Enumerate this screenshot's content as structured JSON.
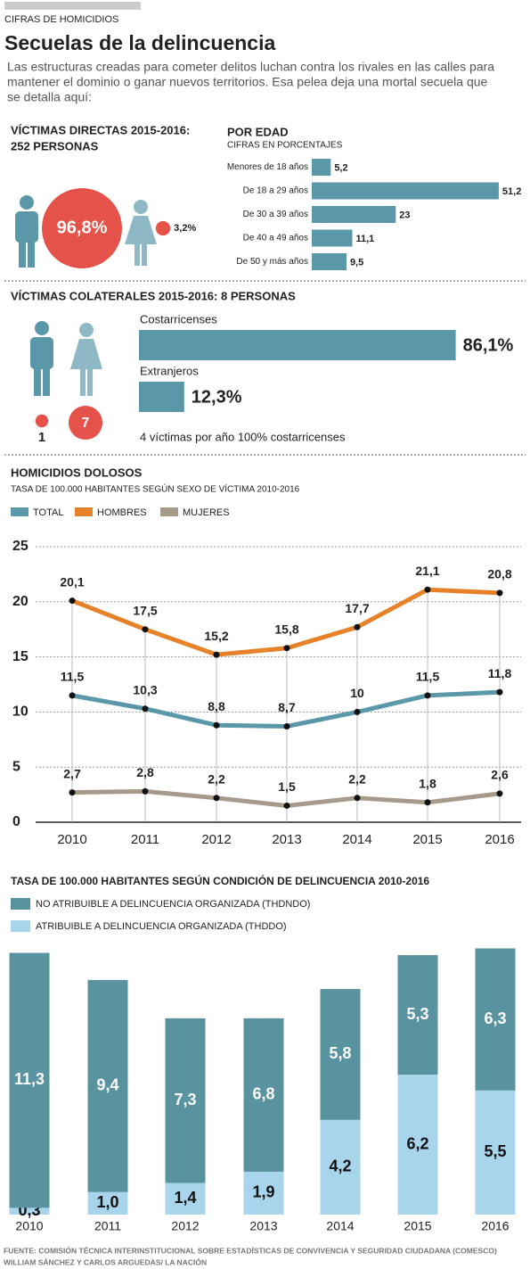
{
  "header": {
    "kicker": "CIFRAS DE HOMICIDIOS",
    "title": "Secuelas de la delincuencia",
    "lead": [
      "Las estructuras creadas para cometer delitos luchan contra los rivales en las calles para",
      "mantener el dominio o ganar nuevos territorios. Esa pelea deja una mortal secuela que",
      "se detalla aquí:"
    ]
  },
  "chart_data": [
    {
      "type": "circles",
      "title": [
        "VÍCTIMAS DIRECTAS 2015-2016:",
        "252 PERSONAS"
      ],
      "values": [
        96.8,
        3.2
      ],
      "value_labels": [
        "96,8%",
        "3,2%"
      ],
      "color": "#e4524a"
    },
    {
      "type": "bar",
      "orientation": "horizontal",
      "title": "POR EDAD",
      "subtitle": "CIFRAS EN PORCENTAJES",
      "categories": [
        "Menores de 18 años",
        "De 18 a 29 años",
        "De 30 a 39 años",
        "De 40 a 49 años",
        "De 50 y más años"
      ],
      "values": [
        5.2,
        51.2,
        23,
        11.1,
        9.5
      ],
      "value_labels": [
        "5,2",
        "51,2",
        "23",
        "11,1",
        "9,5"
      ],
      "color": "#5a97a8"
    },
    {
      "type": "bar",
      "orientation": "horizontal",
      "title": "VÍCTIMAS COLATERALES 2015-2016: 8 PERSONAS",
      "categories": [
        "Costarricenses",
        "Extranjeros"
      ],
      "values": [
        86.1,
        12.3
      ],
      "value_labels": [
        "86,1%",
        "12,3%"
      ],
      "color": "#5a97a8",
      "counts": [
        1,
        7
      ],
      "counts_color": "#e4524a",
      "note": "4 víctimas por año 100% costarricenses"
    },
    {
      "type": "line",
      "title": "HOMICIDIOS DOLOSOS",
      "subtitle": "TASA DE 100.000 HABITANTES SEGÚN SEXO DE VÍCTIMA 2010-2016",
      "categories": [
        "2010",
        "2011",
        "2012",
        "2013",
        "2014",
        "2015",
        "2016"
      ],
      "series": [
        {
          "name": "TOTAL",
          "color": "#5a97a8",
          "values": [
            11.5,
            10.3,
            8.8,
            8.7,
            10,
            11.5,
            11.8
          ],
          "value_labels": [
            "11,5",
            "10,3",
            "8,8",
            "8,7",
            "10",
            "11,5",
            "11,8"
          ]
        },
        {
          "name": "HOMBRES",
          "color": "#e8822a",
          "values": [
            20.1,
            17.5,
            15.2,
            15.8,
            17.7,
            21.1,
            20.8
          ],
          "value_labels": [
            "20,1",
            "17,5",
            "15,2",
            "15,8",
            "17,7",
            "21,1",
            "20,8"
          ]
        },
        {
          "name": "MUJERES",
          "color": "#a89a8a",
          "values": [
            2.7,
            2.8,
            2.2,
            1.5,
            2.2,
            1.8,
            2.6
          ],
          "value_labels": [
            "2,7",
            "2,8",
            "2,2",
            "1,5",
            "2,2",
            "1,8",
            "2,6"
          ]
        }
      ],
      "ylim": [
        0,
        25
      ],
      "yticks": [
        0,
        5,
        10,
        15,
        20,
        25
      ],
      "grid": true
    },
    {
      "type": "bar",
      "stacked": true,
      "title": "TASA DE 100.000 HABITANTES SEGÚN CONDICIÓN DE DELINCUENCIA 2010-2016",
      "categories": [
        "2010",
        "2011",
        "2012",
        "2013",
        "2014",
        "2015",
        "2016"
      ],
      "series": [
        {
          "name": "ATRIBUIBLE A DELINCUENCIA ORGANIZADA (THDDO)",
          "color": "#a8d4ec",
          "values": [
            0.3,
            1.0,
            1.4,
            1.9,
            4.2,
            6.2,
            5.5
          ],
          "value_labels": [
            "0,3",
            "1,0",
            "1,4",
            "1,9",
            "4,2",
            "6,2",
            "5,5"
          ]
        },
        {
          "name": "NO ATRIBUIBLE A DELINCUENCIA ORGANIZADA (THDNDO)",
          "color": "#5a93a0",
          "values": [
            11.3,
            9.4,
            7.3,
            6.8,
            5.8,
            5.3,
            6.3
          ],
          "value_labels": [
            "11,3",
            "9,4",
            "7,3",
            "6,8",
            "5,8",
            "5,3",
            "6,3"
          ]
        }
      ]
    }
  ],
  "footer": {
    "source": "FUENTE: COMISIÓN TÉCNICA INTERINSTITUCIONAL SOBRE ESTADÍSTICAS DE CONVIVENCIA Y SEGURIDAD CIUDADANA (COMESCO)",
    "credit": "WILLIAM SÁNCHEZ Y CARLOS ARGUEDAS/ LA NACIÓN"
  }
}
